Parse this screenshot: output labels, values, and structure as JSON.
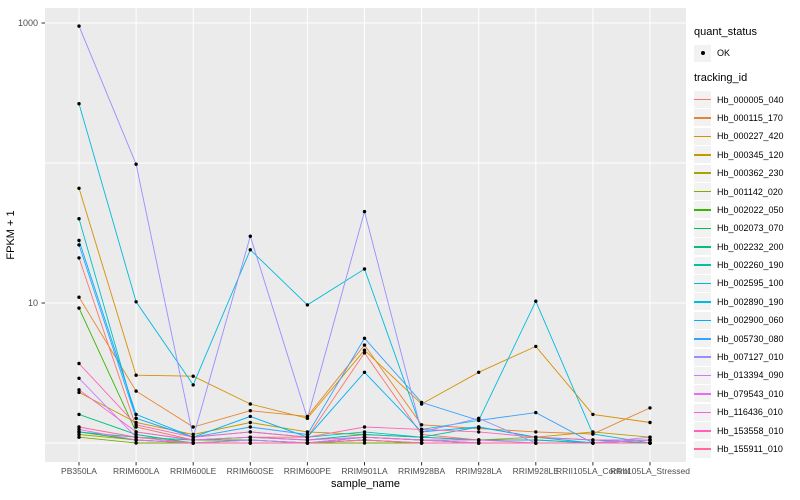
{
  "figure": {
    "panel_bg": "#EBEBEB",
    "grid_color": "#FFFFFF",
    "tick_color": "#333333",
    "point_color": "#000000"
  },
  "legend": {
    "quant_status": {
      "title": "quant_status",
      "items": [
        {
          "label": "OK",
          "marker": "black-point"
        }
      ]
    },
    "tracking_id": {
      "title": "tracking_id"
    }
  },
  "chart_data": {
    "type": "line",
    "title": "",
    "xlabel": "sample_name",
    "ylabel": "FPKM + 1",
    "y_scale": "log10",
    "y_gridlines": [
      1,
      10,
      100,
      1000
    ],
    "y_labeled_ticks": [
      1000,
      10
    ],
    "ylim": [
      0.75,
      1280
    ],
    "legend_position": "right",
    "grid": true,
    "point_marker": "filled-circle",
    "quant_status_all": "OK",
    "categories": [
      "PB350LA",
      "RRIM600LA",
      "RRIM600LE",
      "RRIM600SE",
      "RRIM600PE",
      "RRIM901LA",
      "RRIM928BA",
      "RRIM928LA",
      "RRIM928LE",
      "RRII105LA_Control",
      "RRII105LA_Stressed"
    ],
    "series": [
      {
        "name": "Hb_000005_040",
        "color": "#F8766D",
        "values": [
          21,
          1.3,
          1.05,
          1.1,
          1.1,
          4.4,
          1.15,
          1.05,
          1.05,
          1.0,
          1.05
        ]
      },
      {
        "name": "Hb_000115_170",
        "color": "#EA8331",
        "values": [
          11,
          2.35,
          1.3,
          1.7,
          1.55,
          5.0,
          1.35,
          1.27,
          1.2,
          1.16,
          1.78
        ]
      },
      {
        "name": "Hb_000227_420",
        "color": "#D89000",
        "values": [
          66,
          3.05,
          3.0,
          1.9,
          1.5,
          4.6,
          1.9,
          3.2,
          4.9,
          1.6,
          1.4
        ]
      },
      {
        "name": "Hb_000345_120",
        "color": "#C09B00",
        "values": [
          2.3,
          1.4,
          1.15,
          1.4,
          1.2,
          1.15,
          1.1,
          1.05,
          1.1,
          1.2,
          1.1
        ]
      },
      {
        "name": "Hb_000362_230",
        "color": "#A3A500",
        "values": [
          1.15,
          1.05,
          1.0,
          1.0,
          1.0,
          1.05,
          1.0,
          1.0,
          1.0,
          1.0,
          1.0
        ]
      },
      {
        "name": "Hb_001142_020",
        "color": "#7CAE00",
        "values": [
          1.1,
          1.0,
          1.0,
          1.0,
          1.0,
          1.0,
          1.0,
          1.0,
          1.0,
          1.0,
          1.0
        ]
      },
      {
        "name": "Hb_002022_050",
        "color": "#39B600",
        "values": [
          9.2,
          1.2,
          1.05,
          1.05,
          1.0,
          1.1,
          1.05,
          1.0,
          1.0,
          1.0,
          1.0
        ]
      },
      {
        "name": "Hb_002073_070",
        "color": "#00BB4E",
        "values": [
          1.2,
          1.05,
          1.0,
          1.0,
          1.0,
          1.05,
          1.0,
          1.0,
          1.0,
          1.0,
          1.0
        ]
      },
      {
        "name": "Hb_002232_200",
        "color": "#00BF7D",
        "values": [
          1.6,
          1.15,
          1.0,
          1.05,
          1.0,
          1.1,
          1.05,
          1.0,
          1.0,
          1.0,
          1.0
        ]
      },
      {
        "name": "Hb_002260_190",
        "color": "#00C1A3",
        "values": [
          1.2,
          1.1,
          1.05,
          1.1,
          1.05,
          1.15,
          1.1,
          1.3,
          1.1,
          1.05,
          1.0
        ]
      },
      {
        "name": "Hb_002595_100",
        "color": "#00BFC4",
        "values": [
          40,
          1.5,
          1.1,
          1.2,
          1.1,
          1.2,
          1.1,
          1.05,
          1.05,
          1.0,
          1.0
        ]
      },
      {
        "name": "Hb_002890_190",
        "color": "#00BAE0",
        "values": [
          265,
          10.2,
          2.6,
          24,
          9.7,
          17.5,
          1.25,
          1.45,
          10.3,
          1.16,
          1.0
        ]
      },
      {
        "name": "Hb_002900_060",
        "color": "#00B0F6",
        "values": [
          28,
          1.6,
          1.1,
          1.55,
          1.1,
          3.2,
          1.2,
          1.3,
          1.1,
          1.0,
          1.0
        ]
      },
      {
        "name": "Hb_005730_080",
        "color": "#35A2FF",
        "values": [
          26,
          1.5,
          1.1,
          1.3,
          1.15,
          5.6,
          1.95,
          1.45,
          1.65,
          1.0,
          1.05
        ]
      },
      {
        "name": "Hb_007127_010",
        "color": "#9590FF",
        "values": [
          950,
          98,
          1.1,
          30,
          1.5,
          45,
          1.2,
          1.5,
          1.0,
          1.0,
          1.1
        ]
      },
      {
        "name": "Hb_013394_090",
        "color": "#C77CFF",
        "values": [
          2.9,
          1.1,
          1.0,
          1.05,
          1.0,
          1.1,
          1.05,
          1.0,
          1.0,
          1.0,
          1.05
        ]
      },
      {
        "name": "Hb_079543_010",
        "color": "#E76BF3",
        "values": [
          1.25,
          1.05,
          1.0,
          1.0,
          1.0,
          1.05,
          1.0,
          1.0,
          1.0,
          1.0,
          1.0
        ]
      },
      {
        "name": "Hb_116436_010",
        "color": "#FA62DB",
        "values": [
          2.4,
          1.2,
          1.05,
          1.1,
          1.05,
          1.1,
          1.05,
          1.05,
          1.0,
          1.0,
          1.0
        ]
      },
      {
        "name": "Hb_153558_010",
        "color": "#FF62BC",
        "values": [
          3.7,
          1.35,
          1.1,
          1.2,
          1.1,
          1.3,
          1.25,
          1.2,
          1.1,
          1.05,
          1.05
        ]
      },
      {
        "name": "Hb_155911_010",
        "color": "#FF6A98",
        "values": [
          1.3,
          1.1,
          1.0,
          1.0,
          1.0,
          1.05,
          1.0,
          1.0,
          1.0,
          1.0,
          1.0
        ]
      }
    ]
  }
}
